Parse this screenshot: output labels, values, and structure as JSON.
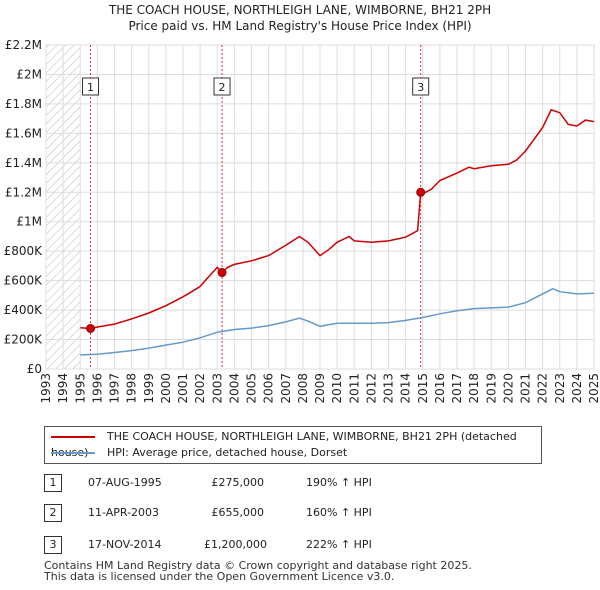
{
  "title_line1": "THE COACH HOUSE, NORTHLEIGH LANE, WIMBORNE, BH21 2PH",
  "title_line2": "Price paid vs. HM Land Registry's House Price Index (HPI)",
  "chart_data": {
    "type": "line",
    "title": "Price paid vs. HM Land Registry's House Price Index (HPI)",
    "xlim": [
      1993,
      2025
    ],
    "ylim": [
      0,
      2200000
    ],
    "x_ticks": [
      "1993",
      "1994",
      "1995",
      "1996",
      "1997",
      "1998",
      "1999",
      "2000",
      "2001",
      "2002",
      "2003",
      "2004",
      "2005",
      "2006",
      "2007",
      "2008",
      "2009",
      "2010",
      "2011",
      "2012",
      "2013",
      "2014",
      "2015",
      "2016",
      "2017",
      "2018",
      "2019",
      "2020",
      "2021",
      "2022",
      "2023",
      "2024",
      "2025"
    ],
    "y_ticks": [
      {
        "value": 0,
        "label": "£0"
      },
      {
        "value": 200000,
        "label": "£200K"
      },
      {
        "value": 400000,
        "label": "£400K"
      },
      {
        "value": 600000,
        "label": "£600K"
      },
      {
        "value": 800000,
        "label": "£800K"
      },
      {
        "value": 1000000,
        "label": "£1M"
      },
      {
        "value": 1200000,
        "label": "£1.2M"
      },
      {
        "value": 1400000,
        "label": "£1.4M"
      },
      {
        "value": 1600000,
        "label": "£1.6M"
      },
      {
        "value": 1800000,
        "label": "£1.8M"
      },
      {
        "value": 2000000,
        "label": "£2M"
      },
      {
        "value": 2200000,
        "label": "£2.2M"
      }
    ],
    "hatch_until": 1995,
    "series": [
      {
        "name": "THE COACH HOUSE, NORTHLEIGH LANE, WIMBORNE, BH21 2PH (detached house)",
        "color": "#cc0000",
        "points": [
          [
            1995.0,
            280000
          ],
          [
            1995.6,
            275000
          ],
          [
            1996.0,
            285000
          ],
          [
            1997.0,
            305000
          ],
          [
            1998.0,
            340000
          ],
          [
            1999.0,
            380000
          ],
          [
            2000.0,
            430000
          ],
          [
            2001.0,
            490000
          ],
          [
            2001.5,
            525000
          ],
          [
            2002.0,
            560000
          ],
          [
            2002.6,
            640000
          ],
          [
            2003.0,
            690000
          ],
          [
            2003.28,
            655000
          ],
          [
            2003.6,
            690000
          ],
          [
            2004.0,
            710000
          ],
          [
            2005.0,
            735000
          ],
          [
            2006.0,
            770000
          ],
          [
            2007.0,
            840000
          ],
          [
            2007.8,
            900000
          ],
          [
            2008.3,
            860000
          ],
          [
            2009.0,
            770000
          ],
          [
            2009.5,
            810000
          ],
          [
            2010.0,
            860000
          ],
          [
            2010.7,
            900000
          ],
          [
            2011.0,
            870000
          ],
          [
            2012.0,
            860000
          ],
          [
            2013.0,
            870000
          ],
          [
            2014.0,
            895000
          ],
          [
            2014.7,
            940000
          ],
          [
            2014.88,
            1200000
          ],
          [
            2015.0,
            1190000
          ],
          [
            2015.5,
            1220000
          ],
          [
            2016.0,
            1280000
          ],
          [
            2017.0,
            1330000
          ],
          [
            2017.7,
            1370000
          ],
          [
            2018.0,
            1360000
          ],
          [
            2019.0,
            1380000
          ],
          [
            2020.0,
            1390000
          ],
          [
            2020.5,
            1420000
          ],
          [
            2021.0,
            1480000
          ],
          [
            2021.5,
            1560000
          ],
          [
            2022.0,
            1640000
          ],
          [
            2022.5,
            1760000
          ],
          [
            2023.0,
            1740000
          ],
          [
            2023.5,
            1660000
          ],
          [
            2024.0,
            1650000
          ],
          [
            2024.5,
            1690000
          ],
          [
            2025.0,
            1680000
          ]
        ]
      },
      {
        "name": "HPI: Average price, detached house, Dorset",
        "color": "#6699cc",
        "points": [
          [
            1995.0,
            96000
          ],
          [
            1996.0,
            100000
          ],
          [
            1997.0,
            112000
          ],
          [
            1998.0,
            125000
          ],
          [
            1999.0,
            142000
          ],
          [
            2000.0,
            162000
          ],
          [
            2001.0,
            182000
          ],
          [
            2002.0,
            212000
          ],
          [
            2003.0,
            250000
          ],
          [
            2004.0,
            268000
          ],
          [
            2005.0,
            278000
          ],
          [
            2006.0,
            295000
          ],
          [
            2007.0,
            320000
          ],
          [
            2007.8,
            345000
          ],
          [
            2008.3,
            325000
          ],
          [
            2009.0,
            290000
          ],
          [
            2010.0,
            310000
          ],
          [
            2011.0,
            310000
          ],
          [
            2012.0,
            310000
          ],
          [
            2013.0,
            315000
          ],
          [
            2014.0,
            330000
          ],
          [
            2015.0,
            350000
          ],
          [
            2016.0,
            375000
          ],
          [
            2017.0,
            395000
          ],
          [
            2018.0,
            410000
          ],
          [
            2019.0,
            415000
          ],
          [
            2020.0,
            420000
          ],
          [
            2021.0,
            450000
          ],
          [
            2022.0,
            510000
          ],
          [
            2022.6,
            545000
          ],
          [
            2023.0,
            525000
          ],
          [
            2024.0,
            510000
          ],
          [
            2025.0,
            515000
          ]
        ]
      }
    ],
    "sales_markers": [
      {
        "label": "1",
        "x": 1995.6,
        "y": 275000
      },
      {
        "label": "2",
        "x": 2003.28,
        "y": 655000
      },
      {
        "label": "3",
        "x": 2014.88,
        "y": 1200000
      }
    ]
  },
  "legend": {
    "property_label": "THE COACH HOUSE, NORTHLEIGH LANE, WIMBORNE, BH21 2PH (detached house)",
    "hpi_label": "HPI: Average price, detached house, Dorset",
    "property_color": "#cc0000",
    "hpi_color": "#6699cc"
  },
  "sales": [
    {
      "num": "1",
      "date": "07-AUG-1995",
      "price": "£275,000",
      "hpi": "190% ↑ HPI"
    },
    {
      "num": "2",
      "date": "11-APR-2003",
      "price": "£655,000",
      "hpi": "160% ↑ HPI"
    },
    {
      "num": "3",
      "date": "17-NOV-2014",
      "price": "£1,200,000",
      "hpi": "222% ↑ HPI"
    }
  ],
  "footer": {
    "line1": "Contains HM Land Registry data © Crown copyright and database right 2025.",
    "line2": "This data is licensed under the Open Government Licence v3.0."
  }
}
